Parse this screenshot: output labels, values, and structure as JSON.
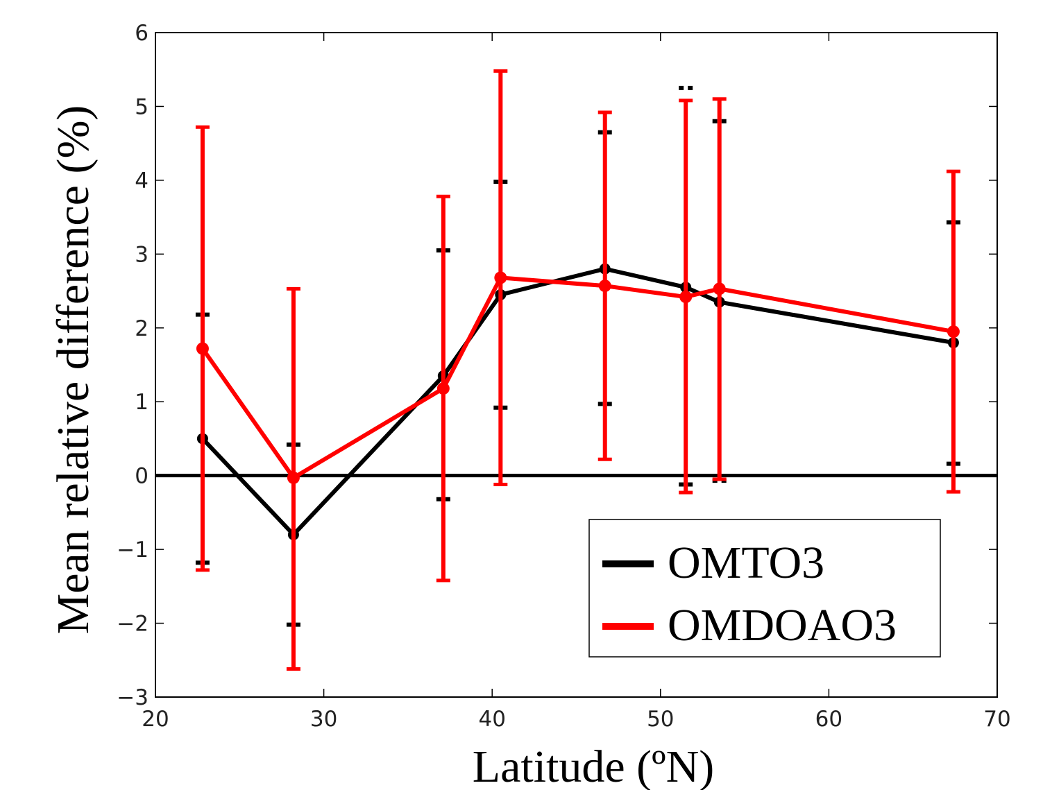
{
  "chart_data": {
    "type": "line",
    "title": "",
    "xlabel": "Latitude (ºN)",
    "ylabel": "Mean relative difference (%)",
    "xlim": [
      20,
      70
    ],
    "ylim": [
      -3,
      6
    ],
    "xticks": [
      20,
      30,
      40,
      50,
      60,
      70
    ],
    "yticks": [
      -3,
      -2,
      -1,
      0,
      1,
      2,
      3,
      4,
      5,
      6
    ],
    "xtick_labels": [
      "20",
      "30",
      "40",
      "50",
      "60",
      "70"
    ],
    "ytick_labels": [
      "−3",
      "−2",
      "−1",
      "0",
      "1",
      "2",
      "3",
      "4",
      "5",
      "6"
    ],
    "reference_line": 0,
    "grid": false,
    "legend_position": "bottom-right",
    "series": [
      {
        "name": "OMTO3",
        "color": "#000000",
        "x": [
          22.8,
          28.2,
          37.1,
          40.5,
          46.7,
          51.5,
          53.5,
          67.4
        ],
        "y": [
          0.5,
          -0.8,
          1.35,
          2.45,
          2.8,
          2.55,
          2.35,
          1.8
        ],
        "err_low": [
          -1.18,
          -2.02,
          -0.32,
          0.92,
          0.97,
          -0.12,
          -0.07,
          0.16
        ],
        "err_high": [
          2.18,
          0.42,
          3.05,
          3.98,
          4.65,
          5.25,
          4.8,
          3.43
        ]
      },
      {
        "name": "OMDOAO3",
        "color": "#ff0000",
        "x": [
          22.8,
          28.2,
          37.1,
          40.5,
          46.7,
          51.5,
          53.5,
          67.4
        ],
        "y": [
          1.72,
          -0.03,
          1.18,
          2.68,
          2.57,
          2.42,
          2.53,
          1.95
        ],
        "err_low": [
          -1.28,
          -2.62,
          -1.42,
          -0.12,
          0.22,
          -0.23,
          -0.05,
          -0.22
        ],
        "err_high": [
          4.72,
          2.53,
          3.78,
          5.48,
          4.92,
          5.08,
          5.1,
          4.12
        ]
      }
    ]
  }
}
